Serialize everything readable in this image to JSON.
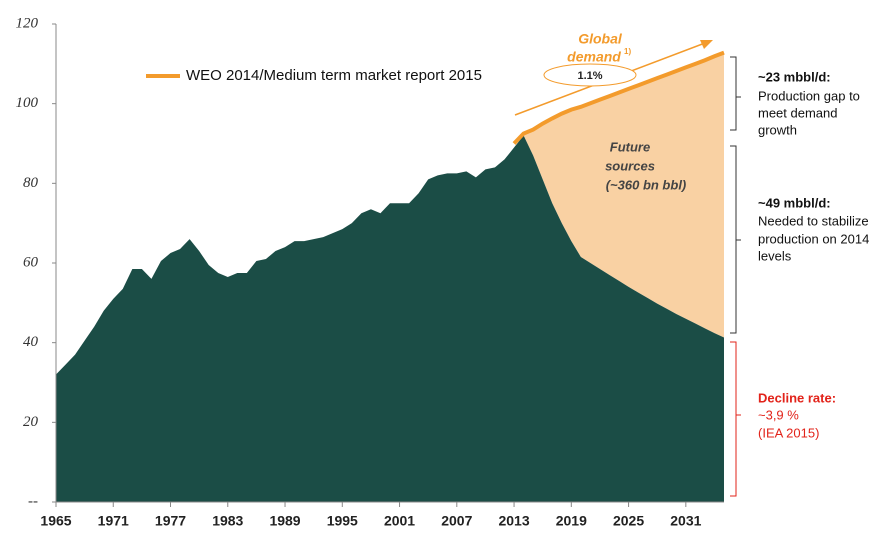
{
  "chart_data": {
    "type": "area",
    "x": [
      1965,
      1966,
      1967,
      1968,
      1969,
      1970,
      1971,
      1972,
      1973,
      1974,
      1975,
      1976,
      1977,
      1978,
      1979,
      1980,
      1981,
      1982,
      1983,
      1984,
      1985,
      1986,
      1987,
      1988,
      1989,
      1990,
      1991,
      1992,
      1993,
      1994,
      1995,
      1996,
      1997,
      1998,
      1999,
      2000,
      2001,
      2002,
      2003,
      2004,
      2005,
      2006,
      2007,
      2008,
      2009,
      2010,
      2011,
      2012,
      2013,
      2014,
      2015,
      2016,
      2017,
      2018,
      2019,
      2020,
      2021,
      2022,
      2023,
      2024,
      2025,
      2026,
      2027,
      2028,
      2029,
      2030,
      2031,
      2032,
      2033,
      2034,
      2035
    ],
    "series": [
      {
        "color": "#1b4d46",
        "values": [
          32,
          34.5,
          37,
          40.5,
          44,
          48,
          51,
          53.5,
          58.5,
          58.5,
          56,
          60.5,
          62.5,
          63.5,
          66,
          63,
          59.5,
          57.5,
          56.5,
          57.5,
          57.5,
          60.5,
          61,
          63,
          64,
          65.5,
          65.5,
          66,
          66.5,
          67.5,
          68.5,
          70,
          72.5,
          73.5,
          72.5,
          75,
          75,
          75,
          77.5,
          81,
          82,
          82.5,
          82.5,
          83,
          81.5,
          83.5,
          84,
          86,
          89,
          92,
          87,
          81,
          75,
          70,
          65.5,
          61.5,
          60,
          58.5,
          57,
          55.5,
          54,
          52.6,
          51.2,
          49.8,
          48.5,
          47.2,
          46,
          44.8,
          43.6,
          42.4,
          41.3
        ]
      },
      {
        "name": "WEO 2014/Medium term market report 2015",
        "color": "#f39b2c",
        "fill": "#f9d1a3",
        "values": [
          null,
          null,
          null,
          null,
          null,
          null,
          null,
          null,
          null,
          null,
          null,
          null,
          null,
          null,
          null,
          null,
          null,
          null,
          null,
          null,
          null,
          null,
          null,
          null,
          null,
          null,
          null,
          null,
          null,
          null,
          null,
          null,
          null,
          null,
          null,
          null,
          null,
          null,
          null,
          null,
          null,
          null,
          null,
          null,
          null,
          null,
          null,
          null,
          90,
          92.5,
          93.5,
          95,
          96.3,
          97.5,
          98.5,
          99.2,
          100.1,
          101,
          101.9,
          102.8,
          103.7,
          104.6,
          105.5,
          106.4,
          107.3,
          108.2,
          109.1,
          110,
          110.9,
          111.9,
          112.8
        ]
      }
    ],
    "xlim": [
      1965,
      2035
    ],
    "xticks": [
      1965,
      1971,
      1977,
      1983,
      1989,
      1995,
      2001,
      2007,
      2013,
      2019,
      2025,
      2031
    ],
    "ylim": [
      0,
      120
    ],
    "yticks": [
      {
        "value": 0,
        "label": "--"
      },
      20,
      40,
      60,
      80,
      100,
      120
    ],
    "annotations": {
      "global_demand": {
        "lines": [
          "Global",
          "demand"
        ],
        "sup": "1)",
        "rate": "1.1%"
      },
      "future_sources": [
        "Future",
        "sources",
        "(~360 bn bbl)"
      ],
      "gap": [
        "~23 mbbl/d:",
        "Production  gap to",
        "meet demand",
        "growth"
      ],
      "stabilize": [
        "~49 mbbl/d:",
        "Needed to stabilize",
        "production on 2014",
        "levels"
      ],
      "decline": [
        "Decline rate:",
        "~3,9 %",
        "(IEA 2015)"
      ]
    }
  }
}
